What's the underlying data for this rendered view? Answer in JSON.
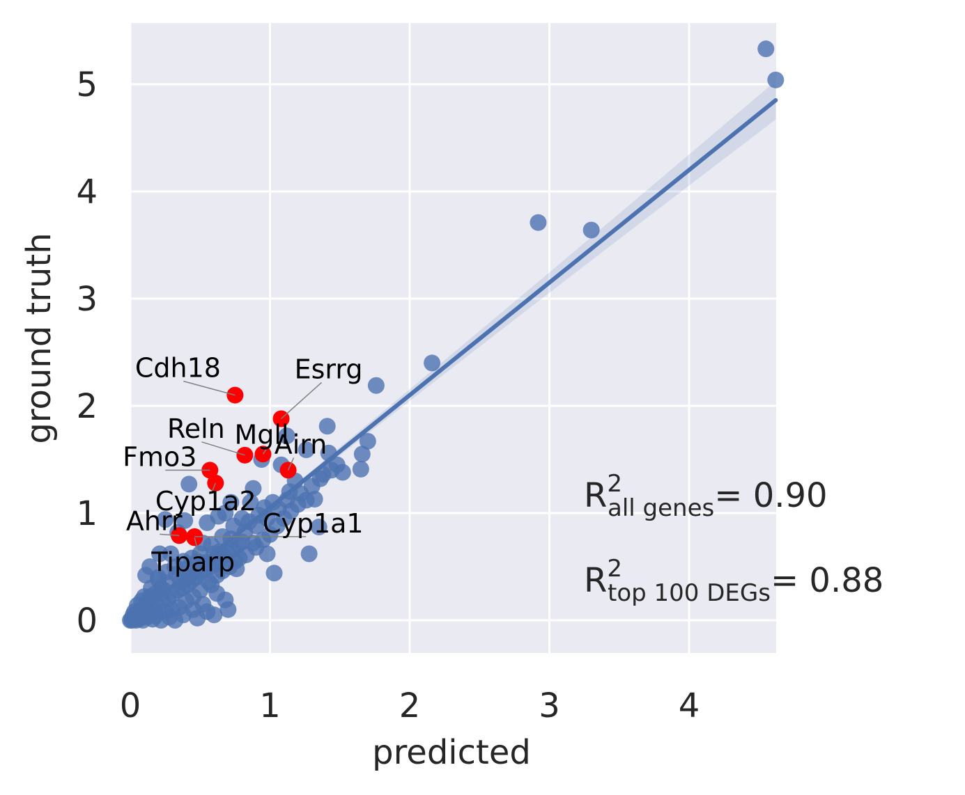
{
  "chart_data": {
    "type": "scatter",
    "title": "",
    "xlabel": "predicted",
    "ylabel": "ground truth",
    "xlim": [
      0,
      4.62
    ],
    "ylim": [
      -0.25,
      5.58
    ],
    "xticks": [
      0,
      1,
      2,
      3,
      4
    ],
    "yticks": [
      0,
      1,
      2,
      3,
      4,
      5
    ],
    "grid": true,
    "colors": {
      "background": "#eaeaf2",
      "grid": "#ffffff",
      "points": "#4c72b0",
      "highlight": "#ff0000",
      "regression": "#4c72b0"
    },
    "regression": {
      "slope": 1.05,
      "intercept": 0.0,
      "ci_halfwidth_end": 0.18
    },
    "series": [
      {
        "points": [
          [
            4.55,
            5.33
          ],
          [
            4.62,
            5.04
          ],
          [
            2.92,
            3.71
          ],
          [
            3.3,
            3.64
          ],
          [
            2.16,
            2.4
          ],
          [
            1.76,
            2.19
          ],
          [
            1.41,
            1.81
          ],
          [
            1.7,
            1.67
          ],
          [
            1.66,
            1.55
          ],
          [
            1.65,
            1.41
          ],
          [
            1.52,
            1.38
          ],
          [
            1.38,
            1.36
          ],
          [
            1.42,
            1.56
          ],
          [
            1.26,
            1.59
          ],
          [
            1.12,
            1.72
          ],
          [
            1.08,
            1.45
          ],
          [
            1.32,
            1.13
          ],
          [
            1.26,
            1.12
          ],
          [
            1.35,
            0.87
          ],
          [
            1.28,
            0.62
          ],
          [
            1.03,
            0.44
          ],
          [
            0.98,
            0.62
          ],
          [
            0.88,
            0.72
          ],
          [
            0.75,
            0.55
          ],
          [
            0.76,
            0.48
          ],
          [
            0.85,
            0.92
          ],
          [
            0.88,
            1.23
          ],
          [
            0.94,
            1.5
          ],
          [
            0.72,
            1.1
          ],
          [
            0.68,
            1.0
          ],
          [
            0.63,
            0.97
          ],
          [
            0.55,
            0.91
          ],
          [
            0.42,
            1.27
          ],
          [
            0.25,
            0.94
          ],
          [
            0.39,
            0.93
          ],
          [
            0.34,
            0.82
          ],
          [
            0.29,
            0.62
          ],
          [
            0.21,
            0.62
          ],
          [
            0.14,
            0.5
          ],
          [
            0.11,
            0.42
          ],
          [
            0.2,
            0.4
          ],
          [
            0.42,
            0.4
          ],
          [
            0.58,
            0.33
          ],
          [
            0.62,
            0.25
          ],
          [
            0.68,
            0.19
          ],
          [
            0.52,
            0.15
          ],
          [
            0.45,
            0.1
          ],
          [
            0.38,
            0.05
          ],
          [
            0.28,
            0.03
          ],
          [
            0.55,
            0.08
          ],
          [
            0.6,
            0.62
          ],
          [
            0.52,
            0.72
          ],
          [
            0.48,
            0.55
          ],
          [
            0.4,
            0.48
          ],
          [
            0.33,
            0.43
          ],
          [
            0.26,
            0.35
          ],
          [
            0.22,
            0.3
          ],
          [
            0.18,
            0.25
          ],
          [
            0.15,
            0.2
          ],
          [
            0.12,
            0.16
          ],
          [
            0.1,
            0.12
          ],
          [
            0.08,
            0.1
          ],
          [
            0.06,
            0.08
          ],
          [
            0.05,
            0.05
          ],
          [
            0.04,
            0.04
          ],
          [
            0.03,
            0.03
          ],
          [
            0.02,
            0.02
          ],
          [
            0.01,
            0.01
          ],
          [
            0.07,
            0.02
          ],
          [
            0.09,
            0.05
          ],
          [
            0.13,
            0.07
          ],
          [
            0.17,
            0.1
          ],
          [
            0.2,
            0.13
          ],
          [
            0.23,
            0.18
          ],
          [
            0.27,
            0.2
          ],
          [
            0.3,
            0.24
          ],
          [
            0.34,
            0.28
          ],
          [
            0.37,
            0.3
          ],
          [
            0.41,
            0.33
          ],
          [
            0.44,
            0.37
          ],
          [
            0.47,
            0.4
          ],
          [
            0.5,
            0.44
          ],
          [
            0.53,
            0.47
          ],
          [
            0.57,
            0.5
          ],
          [
            0.61,
            0.53
          ],
          [
            0.64,
            0.57
          ],
          [
            0.67,
            0.6
          ],
          [
            0.7,
            0.63
          ],
          [
            0.73,
            0.66
          ],
          [
            0.77,
            0.7
          ],
          [
            0.8,
            0.73
          ],
          [
            0.35,
            0.12
          ],
          [
            0.4,
            0.18
          ],
          [
            0.45,
            0.22
          ],
          [
            0.3,
            0.1
          ],
          [
            0.25,
            0.08
          ],
          [
            0.18,
            0.04
          ],
          [
            0.12,
            0.03
          ],
          [
            0.06,
            0.01
          ],
          [
            0.5,
            0.28
          ],
          [
            0.56,
            0.36
          ],
          [
            0.62,
            0.42
          ],
          [
            0.66,
            0.46
          ],
          [
            0.71,
            0.5
          ],
          [
            0.78,
            0.58
          ],
          [
            0.83,
            0.61
          ],
          [
            0.9,
            0.68
          ],
          [
            0.95,
            0.75
          ],
          [
            1.0,
            0.8
          ],
          [
            1.05,
            0.88
          ],
          [
            1.1,
            0.95
          ],
          [
            1.15,
            1.02
          ],
          [
            1.2,
            1.08
          ],
          [
            1.18,
            1.3
          ],
          [
            1.14,
            1.2
          ],
          [
            1.02,
            1.1
          ],
          [
            0.96,
            1.05
          ],
          [
            0.92,
            0.98
          ],
          [
            0.86,
            1.1
          ],
          [
            0.8,
            0.95
          ],
          [
            0.74,
            0.88
          ],
          [
            0.66,
            0.78
          ],
          [
            0.58,
            0.7
          ],
          [
            0.5,
            0.62
          ],
          [
            0.44,
            0.58
          ],
          [
            0.38,
            0.55
          ],
          [
            0.32,
            0.5
          ],
          [
            0.26,
            0.45
          ],
          [
            0.2,
            0.38
          ],
          [
            0.15,
            0.3
          ],
          [
            0.1,
            0.22
          ],
          [
            0.05,
            0.14
          ],
          [
            0.03,
            0.08
          ],
          [
            0.02,
            0.05
          ],
          [
            0.08,
            0.18
          ],
          [
            0.14,
            0.22
          ],
          [
            0.24,
            0.28
          ],
          [
            0.36,
            0.36
          ],
          [
            0.46,
            0.46
          ],
          [
            0.54,
            0.54
          ],
          [
            0.64,
            0.64
          ],
          [
            0.72,
            0.76
          ],
          [
            0.82,
            0.82
          ],
          [
            0.9,
            0.88
          ],
          [
            0.98,
            0.95
          ],
          [
            1.06,
            1.04
          ],
          [
            1.12,
            1.12
          ],
          [
            1.22,
            1.18
          ],
          [
            1.3,
            1.25
          ],
          [
            1.36,
            1.32
          ],
          [
            1.44,
            1.4
          ],
          [
            1.48,
            1.45
          ],
          [
            0.6,
            0.05
          ],
          [
            0.7,
            0.1
          ],
          [
            0.48,
            0.02
          ],
          [
            0.32,
            0.0
          ],
          [
            0.22,
            0.0
          ],
          [
            0.16,
            0.01
          ],
          [
            0.09,
            0.0
          ],
          [
            0.04,
            0.0
          ],
          [
            0.01,
            0.0
          ],
          [
            0.0,
            0.0
          ]
        ]
      }
    ],
    "highlighted_genes": [
      {
        "gene": "Cdh18",
        "x": 0.75,
        "y": 2.1
      },
      {
        "gene": "Esrrg",
        "x": 1.08,
        "y": 1.88
      },
      {
        "gene": "Mgll",
        "x": 0.95,
        "y": 1.55
      },
      {
        "gene": "Reln",
        "x": 0.82,
        "y": 1.54
      },
      {
        "gene": "Airn",
        "x": 1.13,
        "y": 1.4
      },
      {
        "gene": "Fmo3",
        "x": 0.57,
        "y": 1.4
      },
      {
        "gene": "Cyp1a2",
        "x": 0.61,
        "y": 1.28
      },
      {
        "gene": "Cyp1a1",
        "x": 0.46,
        "y": 0.78
      },
      {
        "gene": "Ahrr",
        "x": 0.35,
        "y": 0.79
      },
      {
        "gene": "Tiparp",
        "x": 0.46,
        "y": 0.77
      }
    ],
    "annotations": [
      {
        "base": "R",
        "sup": "2",
        "sub": "all genes",
        "text": "= 0.90"
      },
      {
        "base": "R",
        "sup": "2",
        "sub": "top 100 DEGs",
        "text": "= 0.88"
      }
    ]
  }
}
